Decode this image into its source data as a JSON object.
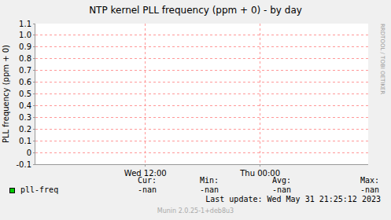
{
  "chart_data": {
    "type": "line",
    "title": "NTP kernel PLL frequency (ppm + 0) - by day",
    "y_label": "PLL frequency (ppm + 0)",
    "x": [
      12,
      24
    ],
    "series": [
      {
        "name": "pll-freq",
        "color": "#00cc00",
        "values": [
          null,
          null
        ]
      }
    ],
    "xlim": [
      0.5,
      35.3
    ],
    "xticks": [
      {
        "value": 12,
        "label": "Wed 12:00"
      },
      {
        "value": 24,
        "label": "Thu 00:00"
      }
    ],
    "ylim": [
      -0.1,
      1.1
    ],
    "yticks": [
      -0.1,
      0,
      0.1,
      0.2,
      0.3,
      0.4,
      0.5,
      0.6,
      0.7,
      0.8,
      0.9,
      {
        "value": 1,
        "label": "1.0"
      },
      1.1
    ],
    "grid": true,
    "legend_table": {
      "columns": [
        "Cur:",
        "Min:",
        "Avg:",
        "Max:"
      ],
      "rows": [
        {
          "name": "pll-freq",
          "values": [
            "-nan",
            "-nan",
            "-nan",
            "-nan"
          ]
        }
      ]
    },
    "annotations": [
      "Last update: Wed May 31 21:25:12 2023",
      "Munin 2.0.25-1+deb8u3",
      "RRDTOOL / TOBI OETIKER"
    ]
  }
}
